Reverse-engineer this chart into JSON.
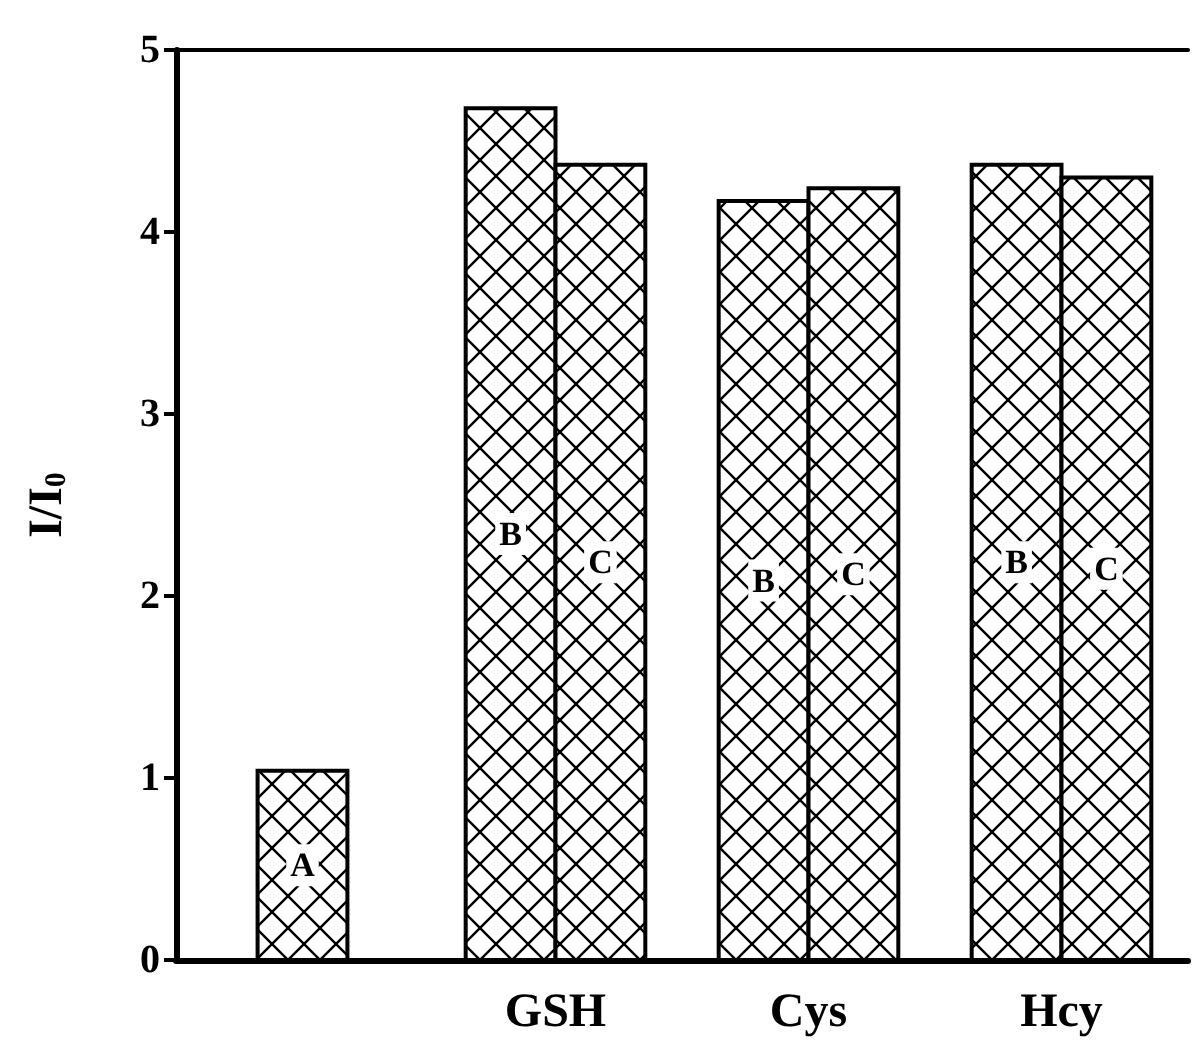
{
  "chart_data": {
    "type": "bar",
    "ylabel": "I/I$_{0}$",
    "categories": [
      null,
      "GSH",
      "Cys",
      "Hcy"
    ],
    "series": [
      {
        "name": "A",
        "color": "#000000",
        "values": [
          1.04,
          null,
          null,
          null
        ]
      },
      {
        "name": "B",
        "color": "#000000",
        "values": [
          null,
          4.68,
          4.17,
          4.37
        ]
      },
      {
        "name": "C",
        "color": "#000000",
        "values": [
          null,
          4.37,
          4.24,
          4.3
        ]
      }
    ],
    "ylim": [
      0,
      5
    ],
    "yticks": [
      0,
      1,
      2,
      3,
      4,
      5
    ],
    "grid": false,
    "legend": false
  }
}
